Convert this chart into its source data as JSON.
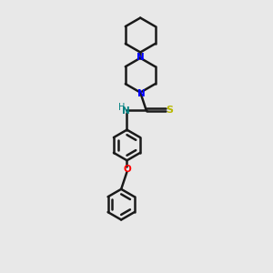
{
  "background_color": "#e8e8e8",
  "bond_color": "#1a1a1a",
  "N_color": "#0000ff",
  "O_color": "#ff0000",
  "S_color": "#b8b800",
  "NH_color": "#008080",
  "line_width": 1.8,
  "font_size": 7.5,
  "xlim": [
    0,
    10
  ],
  "ylim": [
    0,
    14
  ]
}
